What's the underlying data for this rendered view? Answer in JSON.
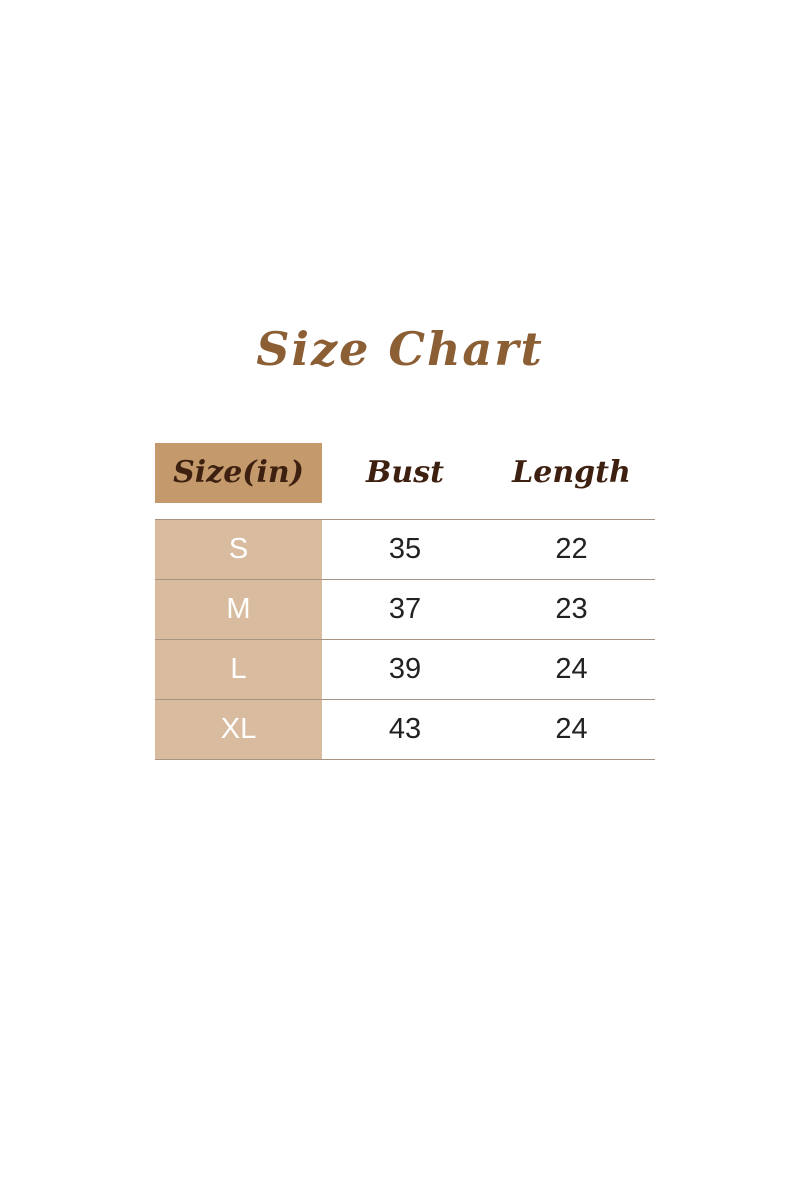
{
  "title": "Size Chart",
  "headers": [
    "Size(in)",
    "Bust",
    "Length"
  ],
  "rows": [
    [
      "S",
      "35",
      "22"
    ],
    [
      "M",
      "37",
      "23"
    ],
    [
      "L",
      "39",
      "24"
    ],
    [
      "XL",
      "43",
      "24"
    ]
  ],
  "colors": {
    "title": "#8b5e34",
    "header_bg": "#c49a6c",
    "size_col_bg": "#d9bc9f",
    "header_text": "#3d2010"
  }
}
